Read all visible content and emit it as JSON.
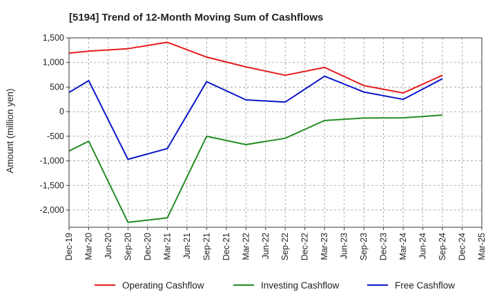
{
  "chart_data": {
    "type": "line",
    "title": "[5194]  Trend of 12-Month Moving Sum of Cashflows",
    "xlabel": "",
    "ylabel": "Amount (million yen)",
    "ylim": [
      -2350,
      1500
    ],
    "yticks": [
      1500,
      1000,
      500,
      0,
      -500,
      -1000,
      -1500,
      -2000
    ],
    "ytick_labels": [
      "1,500",
      "1,000",
      "500",
      "0",
      "-500",
      "-1,000",
      "-1,500",
      "-2,000"
    ],
    "categories": [
      "Dec-19",
      "Mar-20",
      "Jun-20",
      "Sep-20",
      "Dec-20",
      "Mar-21",
      "Jun-21",
      "Sep-21",
      "Dec-21",
      "Mar-22",
      "Jun-22",
      "Sep-22",
      "Dec-22",
      "Mar-23",
      "Jun-23",
      "Sep-23",
      "Dec-23",
      "Mar-24",
      "Jun-24",
      "Sep-24",
      "Dec-24",
      "Mar-25"
    ],
    "grid": true,
    "legend_position": "bottom",
    "series": [
      {
        "name": "Operating Cashflow",
        "color": "#e8191b",
        "values": [
          1190,
          1230,
          null,
          1280,
          null,
          1410,
          null,
          1110,
          null,
          910,
          null,
          740,
          null,
          900,
          null,
          530,
          null,
          380,
          null,
          740,
          null,
          null
        ]
      },
      {
        "name": "Investing Cashflow",
        "color": "#228b22",
        "values": [
          -800,
          -600,
          null,
          -2250,
          null,
          -2160,
          null,
          -500,
          null,
          -670,
          null,
          -540,
          null,
          -180,
          null,
          -130,
          null,
          -125,
          null,
          -70,
          null,
          null
        ]
      },
      {
        "name": "Free Cashflow",
        "color": "#0a14c8",
        "values": [
          390,
          630,
          null,
          -970,
          null,
          -750,
          null,
          610,
          null,
          240,
          null,
          195,
          null,
          720,
          null,
          400,
          null,
          250,
          null,
          670,
          null,
          null
        ]
      }
    ]
  }
}
